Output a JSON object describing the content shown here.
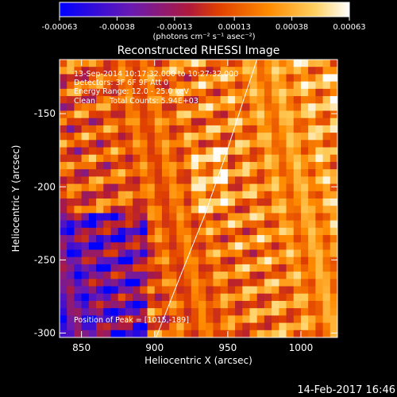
{
  "chart_data": {
    "type": "heatmap",
    "title": "Reconstructed RHESSI Image",
    "colorbar": {
      "ticks": [
        "-0.00063",
        "-0.00038",
        "-0.00013",
        "0.00013",
        "0.00038",
        "0.00063"
      ],
      "range": [
        -0.00063,
        0.00063
      ],
      "unit_label": "(photons cm⁻² s⁻¹ asec⁻²)",
      "colors": [
        "#0000ff",
        "#6a1ab0",
        "#b01a3a",
        "#e04000",
        "#ff8a00",
        "#ffd060",
        "#ffffff"
      ]
    },
    "xlabel": "Heliocentric X (arcsec)",
    "ylabel": "Heliocentric Y (arcsec)",
    "xlim": [
      835,
      1025
    ],
    "ylim": [
      -303,
      -113
    ],
    "x_ticks": [
      850,
      900,
      950,
      1000
    ],
    "y_ticks": [
      -150,
      -200,
      -250,
      -300
    ],
    "annotations": [
      "13-Sep-2014 10:17:32.000 to 10:27:32.000",
      "Detectors: 3F 6F 9F Att 0",
      "Energy Range: 12.0 - 25.0 keV",
      "Clean      Total Counts: 5.94E+03"
    ],
    "peak_label": "Position of Peak = [1015,-189]",
    "peak": [
      1015,
      -189
    ],
    "limb_curve": {
      "x": [
        901,
        918,
        934,
        948,
        961,
        970
      ],
      "y": [
        -303,
        -260,
        -220,
        -180,
        -140,
        -113
      ]
    },
    "grid": false,
    "legend": "none"
  },
  "footer": {
    "timestamp": "14-Feb-2017 16:46"
  }
}
